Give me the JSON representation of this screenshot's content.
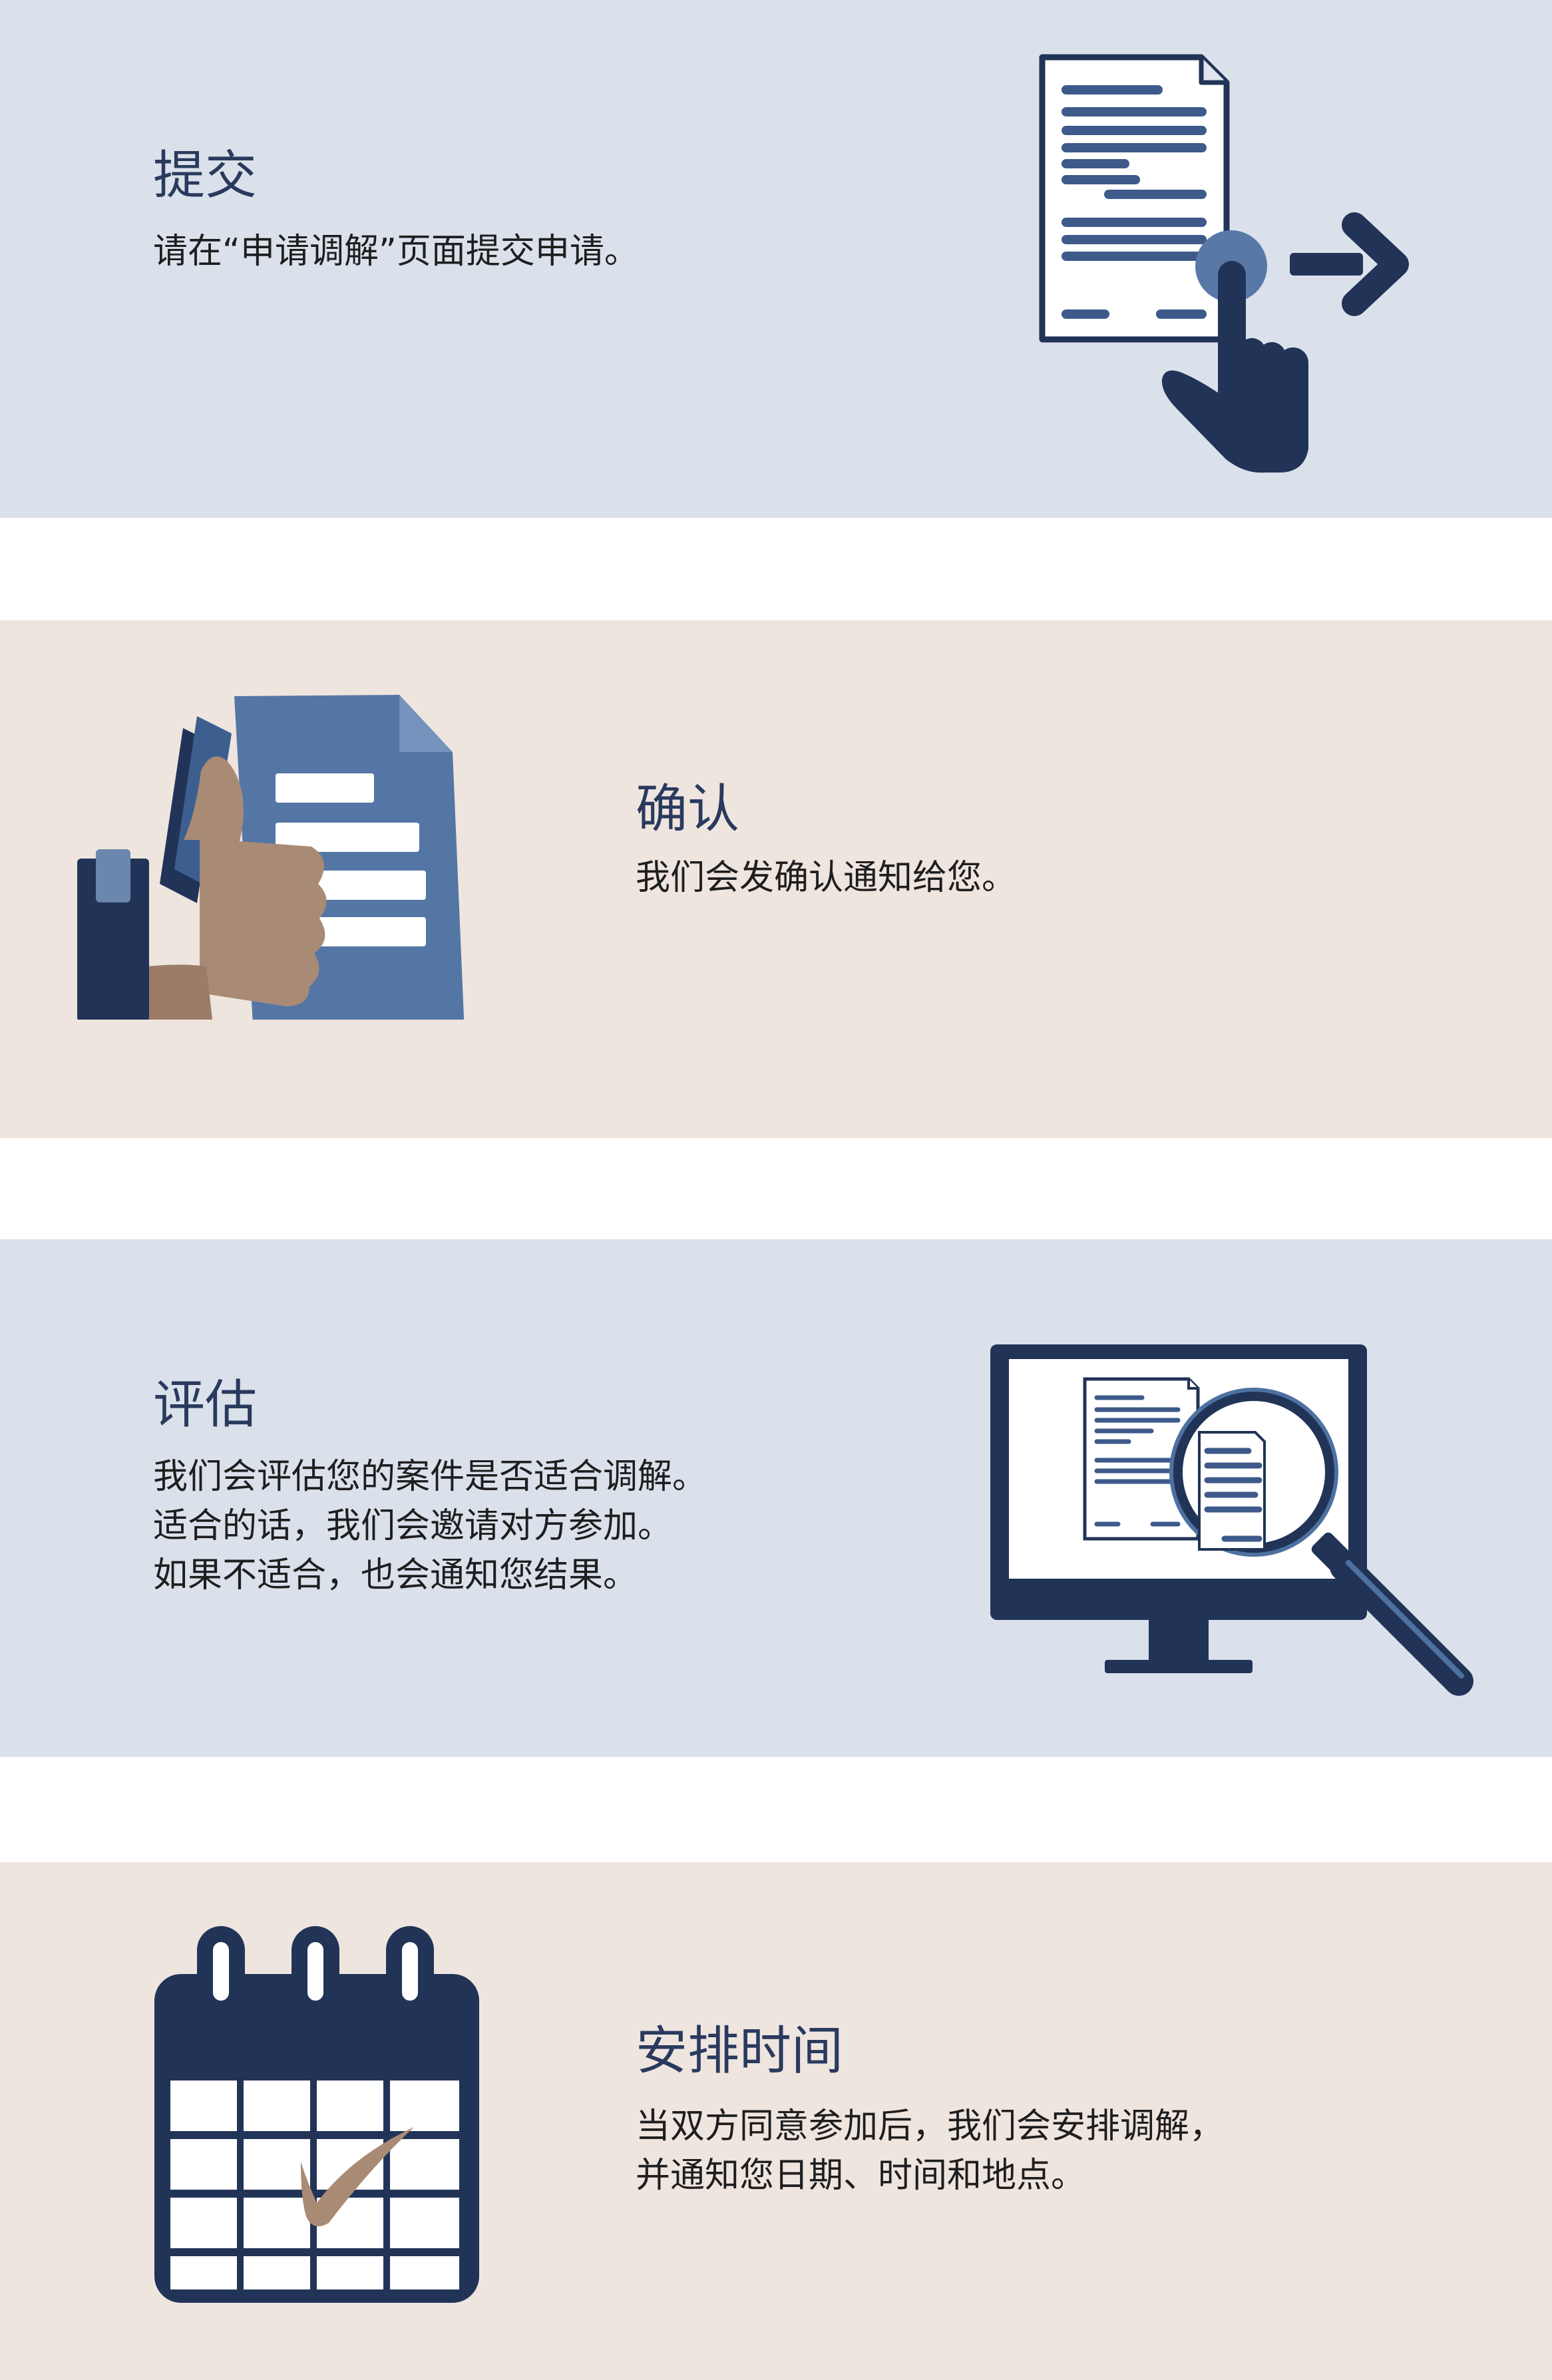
{
  "steps": [
    {
      "title": "提交",
      "lines": [
        "请在“申请调解”页面提交申请。"
      ],
      "icon": "document-tap-icon"
    },
    {
      "title": "确认",
      "lines": [
        "我们会发确认通知给您。"
      ],
      "icon": "thumbs-up-document-icon"
    },
    {
      "title": "评估",
      "lines": [
        "我们会评估您的案件是否适合调解。",
        "适合的话，我们会邀请对方参加。",
        "如果不适合，也会通知您结果。"
      ],
      "icon": "monitor-magnifier-icon"
    },
    {
      "title": "安排时间",
      "lines": [
        "当双方同意参加后，我们会安排调解，",
        "并通知您日期、时间和地点。"
      ],
      "icon": "calendar-check-icon"
    }
  ],
  "colors": {
    "band_blue": "#dbe1eb",
    "band_beige": "#efe5df",
    "title": "#2a3a5e",
    "navy": "#213457",
    "mid_blue": "#4d71a1",
    "skin": "#a98a75",
    "skin_shadow": "#9b7c69"
  }
}
